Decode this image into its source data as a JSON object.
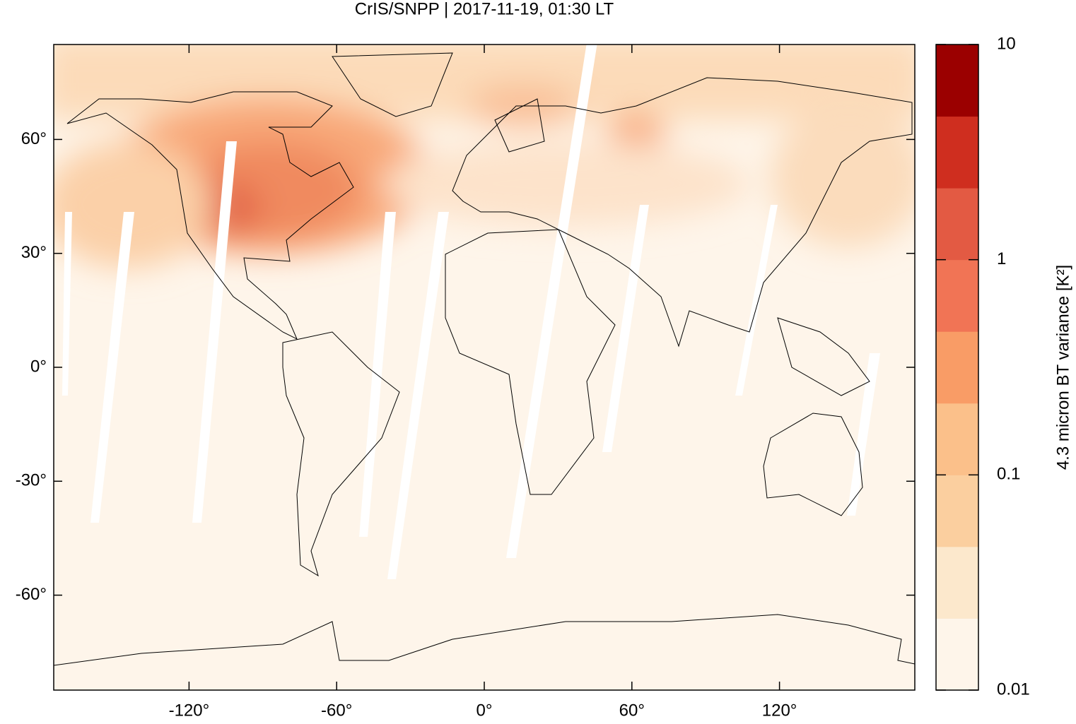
{
  "chart_data": {
    "type": "map",
    "title": "CrIS/SNPP | 2017-11-19, 01:30 LT",
    "xlim": [
      -175,
      175
    ],
    "ylim": [
      -85,
      85
    ],
    "xticks": [
      {
        "value": -120,
        "label": "-120°"
      },
      {
        "value": -60,
        "label": "-60°"
      },
      {
        "value": 0,
        "label": "0°"
      },
      {
        "value": 60,
        "label": "60°"
      },
      {
        "value": 120,
        "label": "120°"
      }
    ],
    "yticks": [
      {
        "value": 60,
        "label": "60°"
      },
      {
        "value": 30,
        "label": "30°"
      },
      {
        "value": 0,
        "label": "0°"
      },
      {
        "value": -30,
        "label": "-30°"
      },
      {
        "value": -60,
        "label": "-60°"
      }
    ],
    "colorbar": {
      "label": "4.3 micron BT variance [K²]",
      "lim": [
        0.01,
        10
      ],
      "log": true,
      "ticks": [
        0.01,
        0.1,
        1,
        10
      ],
      "colors": [
        "#fef5ea",
        "#fce8cc",
        "#fbcf9f",
        "#fbc08a",
        "#f99c66",
        "#f17455",
        "#e35a43",
        "#cf2e1f",
        "#9b0000"
      ]
    }
  }
}
